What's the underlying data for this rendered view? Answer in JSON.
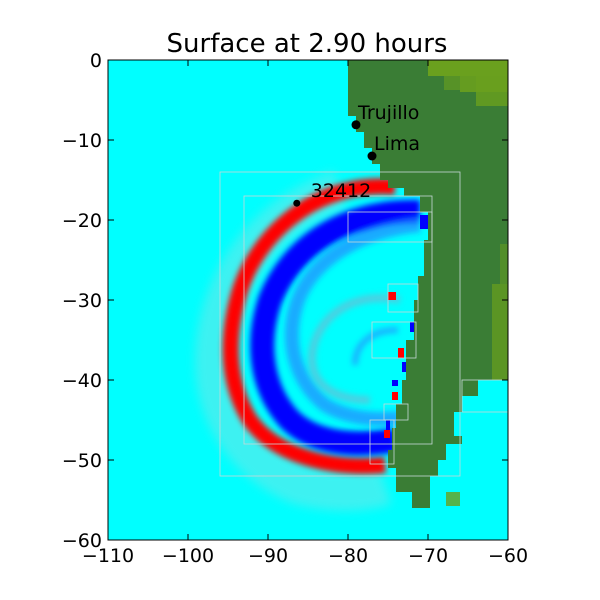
{
  "title": "Surface at 2.90 hours",
  "chart_data": {
    "type": "heatmap",
    "title": "Surface at 2.90 hours",
    "xlim": [
      -110,
      -60
    ],
    "ylim": [
      -60,
      0
    ],
    "x_ticks": [
      -110,
      -100,
      -90,
      -80,
      -70,
      -60
    ],
    "y_ticks": [
      0,
      -10,
      -20,
      -30,
      -40,
      -50,
      -60
    ],
    "x_tick_labels": [
      "−110",
      "−100",
      "−90",
      "−80",
      "−70",
      "−60"
    ],
    "y_tick_labels": [
      "0",
      "−10",
      "−20",
      "−30",
      "−40",
      "−50",
      "−60"
    ],
    "colors": {
      "ocean": "#00ffff",
      "land": "#3a7d35",
      "land_high": "#6aa01e",
      "wave_crest": "#ff0000",
      "wave_trough": "#0000ff",
      "wave_mid": "#2090ff",
      "grid_patch": "#c8d8d8"
    },
    "locations": [
      {
        "name": "Trujillo",
        "lon": -79.0,
        "lat": -8.1
      },
      {
        "name": "Lima",
        "lon": -77.0,
        "lat": -12.0
      },
      {
        "name": "32412",
        "lon": -86.4,
        "lat": -17.9
      }
    ]
  }
}
